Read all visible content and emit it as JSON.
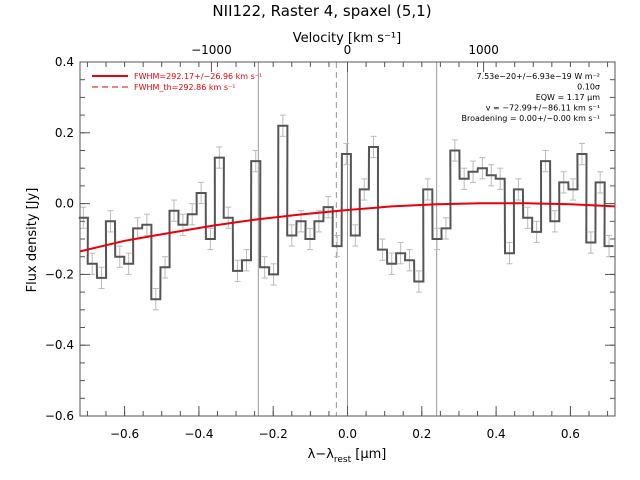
{
  "chart_data": {
    "type": "line",
    "title": "NII122, Raster 4, spaxel (5,1)",
    "xlabel": "λ-λrest [μm]",
    "xlabel_main": "λ−λ",
    "xlabel_sub": "rest",
    "xlabel_unit": " [μm]",
    "ylabel": "Flux density [Jy]",
    "top_axis_label": "Velocity [km s⁻¹]",
    "xlim": [
      -0.72,
      0.72
    ],
    "ylim": [
      -0.6,
      0.4
    ],
    "x_ticks": [
      -0.6,
      -0.4,
      -0.2,
      0.0,
      0.2,
      0.4,
      0.6
    ],
    "x_tick_labels": [
      "−0.6",
      "−0.4",
      "−0.2",
      "0.0",
      "0.2",
      "0.4",
      "0.6"
    ],
    "y_ticks": [
      -0.6,
      -0.4,
      -0.2,
      0.0,
      0.2,
      0.4
    ],
    "y_tick_labels": [
      "−0.6",
      "−0.4",
      "−0.2",
      "0.0",
      "0.2",
      "0.4"
    ],
    "top_ticks_x": [
      -0.3663,
      0.0,
      0.3663
    ],
    "top_tick_labels": [
      "−1000",
      "0",
      "1000"
    ],
    "vertical_lines": [
      {
        "x": -0.24,
        "style": "solid"
      },
      {
        "x": -0.03,
        "style": "dashed"
      },
      {
        "x": 0.0,
        "style": "solid"
      },
      {
        "x": 0.24,
        "style": "solid"
      }
    ],
    "legend": [
      {
        "label": "FWHM=292.17+/−26.96 km s⁻¹",
        "style": "solid",
        "color": "#e8000b"
      },
      {
        "label": "FWHM_th=292.86 km s⁻¹",
        "style": "dashed",
        "color": "#e8000b"
      }
    ],
    "annotations": [
      "7.53e−20+/−6.93e−19 W m⁻²",
      "0.10σ",
      "EQW = 1.17 μm",
      "v = −72.99+/−86.11 km s⁻¹",
      "Broadening = 0.00+/−0.00 km s⁻¹"
    ],
    "series": [
      {
        "style": "step",
        "color": "#555555",
        "bin_width": 0.0244,
        "x": [
          -0.711,
          -0.687,
          -0.662,
          -0.638,
          -0.613,
          -0.589,
          -0.565,
          -0.54,
          -0.516,
          -0.491,
          -0.467,
          -0.443,
          -0.418,
          -0.394,
          -0.369,
          -0.345,
          -0.321,
          -0.296,
          -0.272,
          -0.247,
          -0.223,
          -0.199,
          -0.174,
          -0.15,
          -0.125,
          -0.101,
          -0.077,
          -0.052,
          -0.028,
          -0.003,
          0.021,
          0.045,
          0.07,
          0.094,
          0.119,
          0.143,
          0.167,
          0.192,
          0.216,
          0.241,
          0.265,
          0.289,
          0.314,
          0.338,
          0.363,
          0.387,
          0.411,
          0.436,
          0.46,
          0.485,
          0.509,
          0.533,
          0.558,
          0.582,
          0.607,
          0.631,
          0.655,
          0.68,
          0.704
        ],
        "y": [
          -0.04,
          -0.17,
          -0.21,
          -0.05,
          -0.15,
          -0.17,
          -0.07,
          -0.06,
          -0.27,
          -0.18,
          -0.02,
          -0.06,
          -0.03,
          0.03,
          -0.1,
          0.13,
          -0.04,
          -0.19,
          -0.16,
          0.12,
          -0.18,
          -0.2,
          0.22,
          -0.09,
          -0.05,
          -0.1,
          -0.05,
          -0.01,
          -0.12,
          0.14,
          -0.09,
          0.04,
          0.16,
          -0.13,
          -0.17,
          -0.14,
          -0.16,
          -0.22,
          0.04,
          -0.1,
          -0.07,
          0.15,
          0.07,
          0.09,
          0.1,
          0.08,
          0.07,
          -0.14,
          0.04,
          -0.04,
          -0.08,
          0.12,
          -0.05,
          0.06,
          0.04,
          0.14,
          -0.11,
          0.06,
          -0.12
        ],
        "yerr": 0.03
      },
      {
        "name": "FWHM=292.17+/−26.96 km s⁻¹",
        "style": "line",
        "color": "#e8000b",
        "x": [
          -0.72,
          -0.6,
          -0.48,
          -0.36,
          -0.24,
          -0.12,
          0.0,
          0.12,
          0.24,
          0.36,
          0.48,
          0.6,
          0.72
        ],
        "y": [
          -0.135,
          -0.105,
          -0.083,
          -0.062,
          -0.044,
          -0.03,
          -0.018,
          -0.008,
          -0.002,
          0.001,
          0.001,
          -0.002,
          -0.008
        ]
      }
    ]
  }
}
